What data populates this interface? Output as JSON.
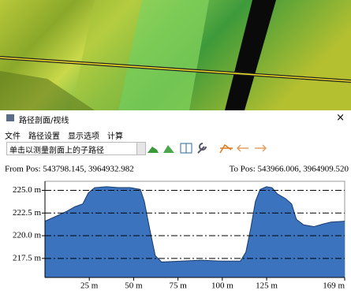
{
  "window": {
    "title": "路径剖面/视线",
    "close": "×"
  },
  "menu": [
    "文件",
    "路径设置",
    "显示选项",
    "计算"
  ],
  "toolbar": {
    "dropdown": "单击以测量剖面上的子路径"
  },
  "chart_data": {
    "type": "area",
    "from_label": "From Pos: 543798.145, 3964932.982",
    "to_label": "To Pos: 543966.006, 3964909.520",
    "x": [
      0,
      5.8,
      12.4,
      16.9,
      21.3,
      24.4,
      28,
      34.7,
      41.3,
      48,
      53.8,
      56,
      59,
      62.2,
      65.8,
      76.9,
      88,
      99.1,
      110.2,
      113.3,
      116,
      118.7,
      121.3,
      124.9,
      128,
      131.1,
      135.6,
      139.1,
      141.8,
      145.8,
      151.6,
      156.9,
      161.3,
      169
    ],
    "values": [
      221.6,
      222.1,
      222.7,
      223.2,
      223.5,
      224.7,
      225.3,
      225.4,
      225.3,
      225.3,
      225.1,
      223.8,
      220.8,
      217.8,
      217.1,
      217.2,
      217.3,
      217.2,
      217.2,
      218.2,
      220.8,
      223.8,
      225.1,
      225.4,
      225.3,
      224.6,
      224.1,
      223.5,
      221.8,
      221.2,
      221.0,
      221.3,
      221.5,
      221.6
    ],
    "color": "#3b73bf",
    "xlim": [
      0,
      169
    ],
    "ylim": [
      215.4,
      226
    ],
    "xticks": [
      {
        "value": 25,
        "label": "25 m"
      },
      {
        "value": 50,
        "label": "50 m"
      },
      {
        "value": 75,
        "label": "75 m"
      },
      {
        "value": 100,
        "label": "100 m"
      },
      {
        "value": 125,
        "label": "125 m"
      },
      {
        "value": 169,
        "label": "169 m"
      }
    ],
    "yticks": [
      {
        "value": 225,
        "label": "225.0 m"
      },
      {
        "value": 222.5,
        "label": "222.5 m"
      },
      {
        "value": 220,
        "label": "220.0 m"
      },
      {
        "value": 217.5,
        "label": "217.5 m"
      }
    ],
    "grid": true
  }
}
